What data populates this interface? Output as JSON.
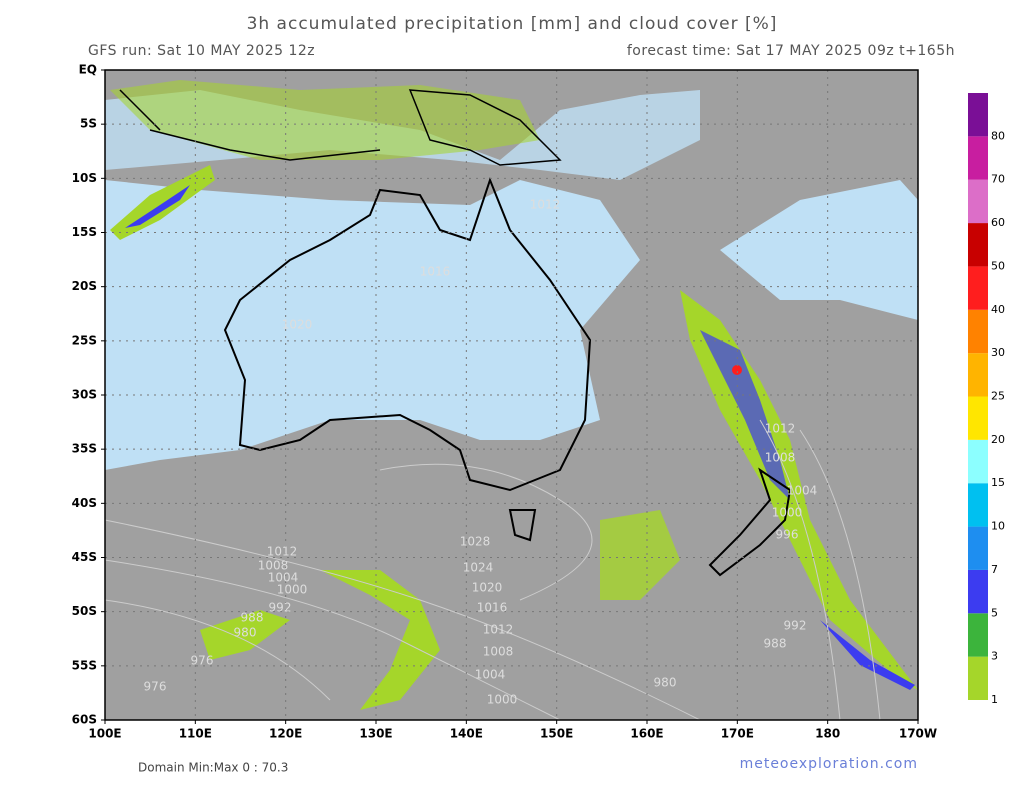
{
  "header": {
    "title": "3h accumulated precipitation [mm] and cloud cover [%]",
    "run": "GFS run: Sat 10 MAY 2025 12z",
    "forecast": "forecast time: Sat 17 MAY 2025 09z  t+165h"
  },
  "axes": {
    "lat": [
      "EQ",
      "5S",
      "10S",
      "15S",
      "20S",
      "25S",
      "30S",
      "35S",
      "40S",
      "45S",
      "50S",
      "55S",
      "60S"
    ],
    "lon": [
      "100E",
      "110E",
      "120E",
      "130E",
      "140E",
      "150E",
      "160E",
      "170E",
      "180",
      "170W"
    ]
  },
  "colorbar": {
    "levels": [
      1,
      3,
      5,
      7,
      10,
      15,
      20,
      25,
      30,
      40,
      50,
      60,
      70,
      80
    ],
    "colors": [
      "#a5d62a",
      "#3cb43c",
      "#3c3cf0",
      "#1e8ef0",
      "#00c0f0",
      "#8cffff",
      "#ffe600",
      "#ffb400",
      "#ff8200",
      "#ff1e1e",
      "#c80000",
      "#dc6ec8",
      "#c81ea0",
      "#7a0f96"
    ]
  },
  "isobars": [
    "1012",
    "1016",
    "1020",
    "1028",
    "1024",
    "1020",
    "1016",
    "1012",
    "1008",
    "1004",
    "1000",
    "1012",
    "1008",
    "1004",
    "1000",
    "992",
    "988",
    "980",
    "976",
    "976",
    "1012",
    "1008",
    "1004",
    "1000",
    "996",
    "992",
    "988",
    "980"
  ],
  "footer": {
    "minmax": "Domain Min:Max 0 : 70.3",
    "source": "meteoexploration.com"
  }
}
